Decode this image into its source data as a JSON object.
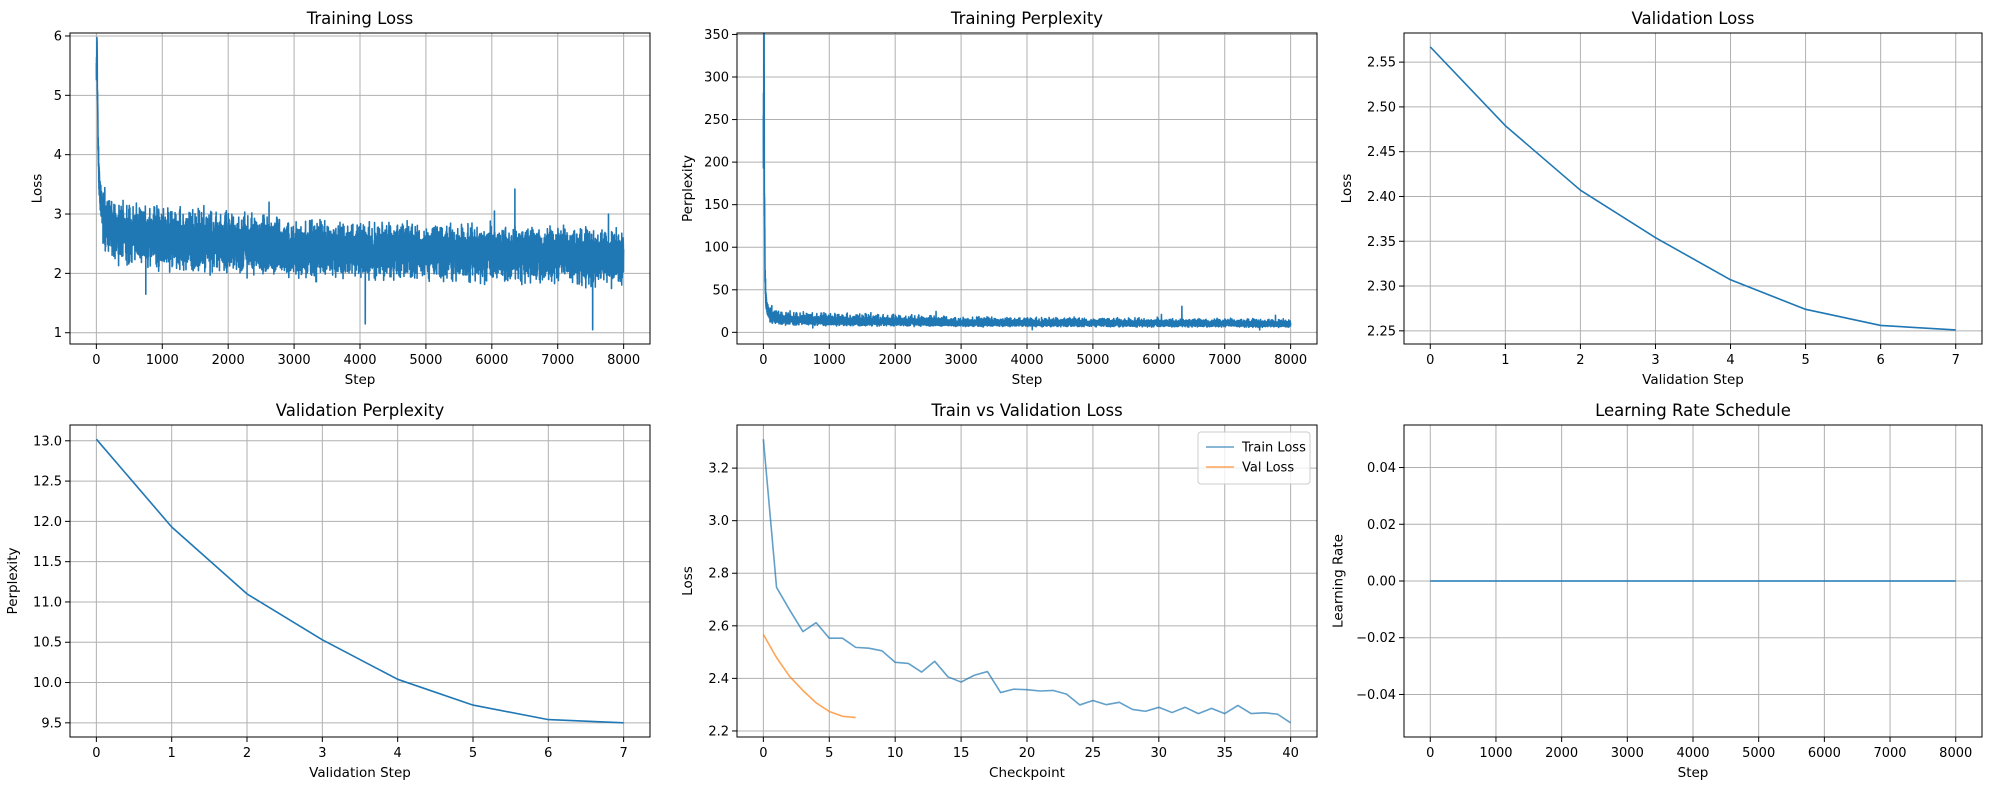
{
  "chart_data": [
    {
      "id": "training-loss",
      "type": "line",
      "title": "Training Loss",
      "xlabel": "Step",
      "ylabel": "Loss",
      "xlim": [
        -400,
        8400
      ],
      "ylim": [
        0.81,
        6.05
      ],
      "grid": true,
      "xticks": [
        0,
        1000,
        2000,
        3000,
        4000,
        5000,
        6000,
        7000,
        8000
      ],
      "xtick_labels": [
        "0",
        "1000",
        "2000",
        "3000",
        "4000",
        "5000",
        "6000",
        "7000",
        "8000"
      ],
      "yticks": [
        1,
        2,
        3,
        4,
        5,
        6
      ],
      "ytick_labels": [
        "1",
        "2",
        "3",
        "4",
        "5",
        "6"
      ],
      "series": [
        {
          "color": "#1f77b4",
          "step_range": [
            0,
            8000
          ],
          "early_points": [
            [
              0,
              5.3
            ],
            [
              5,
              5.6
            ],
            [
              10,
              5.81
            ],
            [
              15,
              5.2
            ],
            [
              25,
              4.3
            ],
            [
              40,
              3.6
            ],
            [
              60,
              3.3
            ],
            [
              100,
              3.0
            ]
          ],
          "noise_envelope": [
            [
              100,
              2.25,
              3.5
            ],
            [
              300,
              2.1,
              3.3
            ],
            [
              1000,
              1.95,
              3.2
            ],
            [
              2000,
              1.9,
              3.1
            ],
            [
              3000,
              1.85,
              3.0
            ],
            [
              4000,
              1.82,
              2.95
            ],
            [
              5000,
              1.8,
              2.92
            ],
            [
              6000,
              1.78,
              2.9
            ],
            [
              7000,
              1.75,
              2.88
            ],
            [
              8000,
              1.72,
              2.8
            ]
          ],
          "outliers": [
            [
              750,
              1.65
            ],
            [
              2620,
              3.2
            ],
            [
              4080,
              1.15
            ],
            [
              6040,
              3.05
            ],
            [
              6350,
              3.42
            ],
            [
              7530,
              1.05
            ],
            [
              7770,
              3.0
            ]
          ]
        }
      ]
    },
    {
      "id": "training-perplexity",
      "type": "line",
      "title": "Training Perplexity",
      "xlabel": "Step",
      "ylabel": "Perplexity",
      "xlim": [
        -400,
        8400
      ],
      "ylim": [
        -13.7,
        351.7
      ],
      "grid": true,
      "xticks": [
        0,
        1000,
        2000,
        3000,
        4000,
        5000,
        6000,
        7000,
        8000
      ],
      "xtick_labels": [
        "0",
        "1000",
        "2000",
        "3000",
        "4000",
        "5000",
        "6000",
        "7000",
        "8000"
      ],
      "yticks": [
        0,
        50,
        100,
        150,
        200,
        250,
        300,
        350
      ],
      "ytick_labels": [
        "0",
        "50",
        "100",
        "150",
        "200",
        "250",
        "300",
        "350"
      ],
      "series": [
        {
          "color": "#1f77b4",
          "derived_from": "exp(training-loss)"
        }
      ]
    },
    {
      "id": "validation-loss",
      "type": "line",
      "title": "Validation Loss",
      "xlabel": "Validation Step",
      "ylabel": "Loss",
      "xlim": [
        -0.35,
        7.35
      ],
      "ylim": [
        2.2353,
        2.5825
      ],
      "grid": true,
      "xticks": [
        0,
        1,
        2,
        3,
        4,
        5,
        6,
        7
      ],
      "xtick_labels": [
        "0",
        "1",
        "2",
        "3",
        "4",
        "5",
        "6",
        "7"
      ],
      "yticks": [
        2.25,
        2.3,
        2.35,
        2.4,
        2.45,
        2.5,
        2.55
      ],
      "ytick_labels": [
        "2.25",
        "2.30",
        "2.35",
        "2.40",
        "2.45",
        "2.50",
        "2.55"
      ],
      "series": [
        {
          "color": "#1f77b4",
          "x": [
            0,
            1,
            2,
            3,
            4,
            5,
            6,
            7
          ],
          "y": [
            2.567,
            2.479,
            2.407,
            2.354,
            2.307,
            2.274,
            2.256,
            2.251
          ]
        }
      ]
    },
    {
      "id": "validation-perplexity",
      "type": "line",
      "title": "Validation Perplexity",
      "xlabel": "Validation Step",
      "ylabel": "Perplexity",
      "xlim": [
        -0.35,
        7.35
      ],
      "ylim": [
        9.324,
        13.196
      ],
      "grid": true,
      "xticks": [
        0,
        1,
        2,
        3,
        4,
        5,
        6,
        7
      ],
      "xtick_labels": [
        "0",
        "1",
        "2",
        "3",
        "4",
        "5",
        "6",
        "7"
      ],
      "yticks": [
        9.5,
        10.0,
        10.5,
        11.0,
        11.5,
        12.0,
        12.5,
        13.0
      ],
      "ytick_labels": [
        "9.5",
        "10.0",
        "10.5",
        "11.0",
        "11.5",
        "12.0",
        "12.5",
        "13.0"
      ],
      "series": [
        {
          "color": "#1f77b4",
          "x": [
            0,
            1,
            2,
            3,
            4,
            5,
            6,
            7
          ],
          "y": [
            13.02,
            11.93,
            11.1,
            10.53,
            10.04,
            9.72,
            9.54,
            9.5
          ]
        }
      ]
    },
    {
      "id": "train-vs-validation-loss",
      "type": "line",
      "title": "Train vs Validation Loss",
      "xlabel": "Checkpoint",
      "ylabel": "Loss",
      "xlim": [
        -2,
        42
      ],
      "ylim": [
        2.177,
        3.364
      ],
      "grid": true,
      "legend": "top-right",
      "xticks": [
        0,
        5,
        10,
        15,
        20,
        25,
        30,
        35,
        40
      ],
      "xtick_labels": [
        "0",
        "5",
        "10",
        "15",
        "20",
        "25",
        "30",
        "35",
        "40"
      ],
      "yticks": [
        2.2,
        2.4,
        2.6,
        2.8,
        3.0,
        3.2
      ],
      "ytick_labels": [
        "2.2",
        "2.4",
        "2.6",
        "2.8",
        "3.0",
        "3.2"
      ],
      "series": [
        {
          "name": "Train Loss",
          "color": "#1f77b4",
          "alpha": 0.7,
          "x": [
            0,
            1,
            2,
            3,
            4,
            5,
            6,
            7,
            8,
            9,
            10,
            11,
            12,
            13,
            14,
            15,
            16,
            17,
            18,
            19,
            20,
            21,
            22,
            23,
            24,
            25,
            26,
            27,
            28,
            29,
            30,
            31,
            32,
            33,
            34,
            35,
            36,
            37,
            38,
            39,
            40
          ],
          "y": [
            3.31,
            2.746,
            2.66,
            2.578,
            2.612,
            2.553,
            2.553,
            2.518,
            2.515,
            2.505,
            2.461,
            2.457,
            2.424,
            2.465,
            2.406,
            2.386,
            2.412,
            2.426,
            2.346,
            2.359,
            2.357,
            2.352,
            2.354,
            2.34,
            2.299,
            2.316,
            2.3,
            2.309,
            2.282,
            2.275,
            2.29,
            2.27,
            2.29,
            2.266,
            2.286,
            2.266,
            2.297,
            2.266,
            2.269,
            2.264,
            2.231
          ]
        },
        {
          "name": "Val Loss",
          "color": "#ff7f0e",
          "alpha": 0.7,
          "x": [
            0,
            1,
            2,
            3,
            4,
            5,
            6,
            7
          ],
          "y": [
            2.567,
            2.479,
            2.407,
            2.354,
            2.307,
            2.274,
            2.256,
            2.251
          ]
        }
      ]
    },
    {
      "id": "learning-rate-schedule",
      "type": "line",
      "title": "Learning Rate Schedule",
      "xlabel": "Step",
      "ylabel": "Learning Rate",
      "xlim": [
        -400,
        8400
      ],
      "ylim": [
        -0.055,
        0.055
      ],
      "grid": true,
      "xticks": [
        0,
        1000,
        2000,
        3000,
        4000,
        5000,
        6000,
        7000,
        8000
      ],
      "xtick_labels": [
        "0",
        "1000",
        "2000",
        "3000",
        "4000",
        "5000",
        "6000",
        "7000",
        "8000"
      ],
      "yticks": [
        -0.04,
        -0.02,
        0.0,
        0.02,
        0.04
      ],
      "ytick_labels": [
        "−0.04",
        "−0.02",
        "0.00",
        "0.02",
        "0.04"
      ],
      "series": [
        {
          "color": "#1f77b4",
          "x": [
            0,
            8000
          ],
          "y": [
            0,
            0
          ]
        }
      ]
    }
  ]
}
